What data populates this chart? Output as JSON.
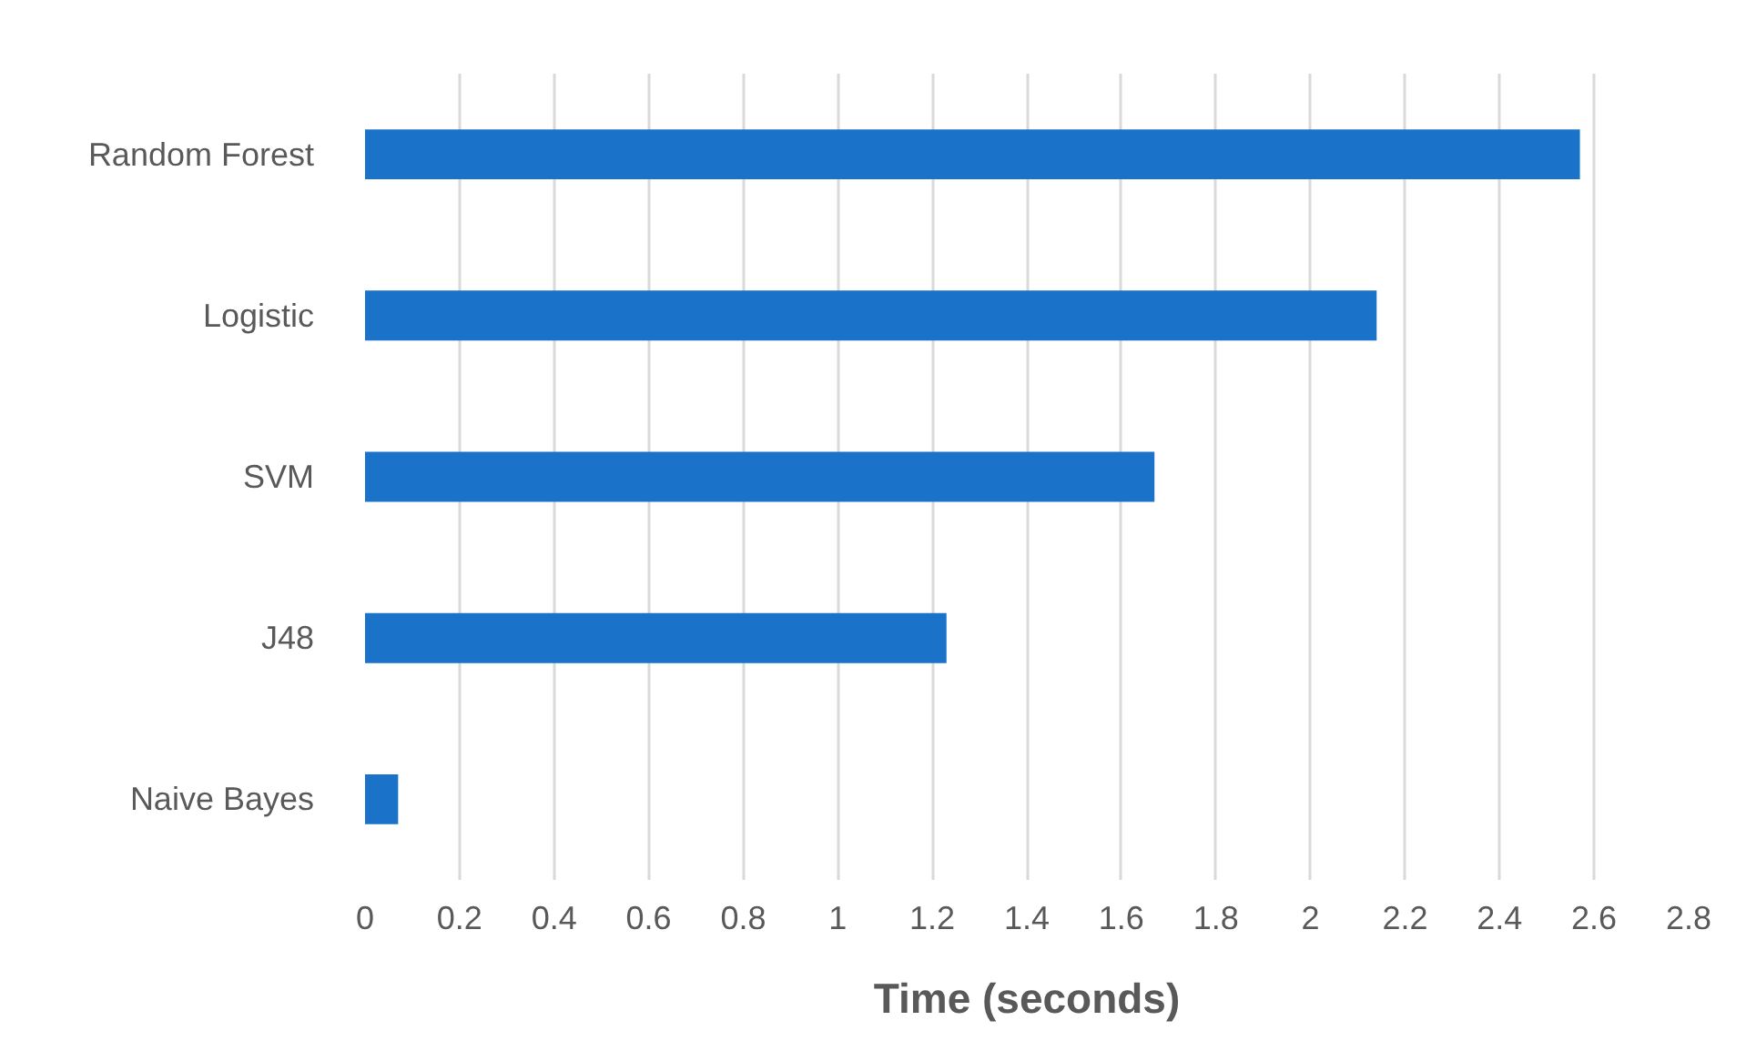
{
  "chart_data": {
    "type": "bar",
    "orientation": "horizontal",
    "xlabel": "Time (seconds)",
    "categories": [
      "Random Forest",
      "Logistic",
      "SVM",
      "J48",
      "Naive Bayes"
    ],
    "values": [
      2.57,
      2.14,
      1.67,
      1.23,
      0.07
    ],
    "color": "#1a73c8",
    "xlim": [
      0,
      2.8
    ],
    "xticks": [
      0,
      0.2,
      0.4,
      0.6,
      0.8,
      1,
      1.2,
      1.4,
      1.6,
      1.8,
      2,
      2.2,
      2.4,
      2.6,
      2.8
    ],
    "grid": "x"
  }
}
